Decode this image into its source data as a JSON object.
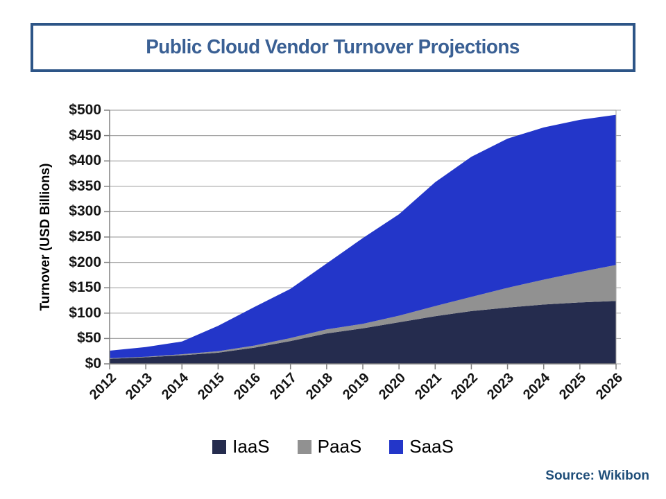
{
  "header": {
    "title": "Public Cloud Vendor Turnover Projections"
  },
  "source_note": "Source: Wikibon",
  "colors": {
    "title_text": "#3A6094",
    "title_border": "#2D5587",
    "source_text": "#1F4E79",
    "axis": "#808080",
    "gridline": "#A6A6A6",
    "tick_label": "#141414"
  },
  "chart_data": {
    "type": "area",
    "stacked": true,
    "title": "Public Cloud Vendor Turnover Projections",
    "xlabel": "",
    "ylabel": "Turnover (USD Billions)",
    "x": [
      2012,
      2013,
      2014,
      2015,
      2016,
      2017,
      2018,
      2019,
      2020,
      2021,
      2022,
      2023,
      2024,
      2025,
      2026
    ],
    "series": [
      {
        "name": "IaaS",
        "color": "#252C4E",
        "values": [
          10,
          13,
          17,
          22,
          32,
          45,
          60,
          70,
          82,
          94,
          104,
          111,
          117,
          121,
          124
        ]
      },
      {
        "name": "PaaS",
        "color": "#919191",
        "values": [
          1,
          1,
          2,
          3,
          4,
          6,
          8,
          9,
          13,
          20,
          28,
          39,
          49,
          60,
          71
        ]
      },
      {
        "name": "SaaS",
        "color": "#2336C9",
        "values": [
          15,
          19,
          25,
          50,
          76,
          97,
          130,
          169,
          200,
          244,
          276,
          294,
          300,
          300,
          296
        ]
      }
    ],
    "stacked_totals": [
      26,
      33,
      44,
      75,
      112,
      148,
      198,
      248,
      295,
      358,
      408,
      444,
      466,
      481,
      491
    ],
    "ylim": [
      0,
      500
    ],
    "y_tick_step": 50,
    "y_ticks": [
      "$0",
      "$50",
      "$100",
      "$150",
      "$200",
      "$250",
      "$300",
      "$350",
      "$400",
      "$450",
      "$500"
    ],
    "grid": "horizontal",
    "legend_position": "bottom"
  }
}
